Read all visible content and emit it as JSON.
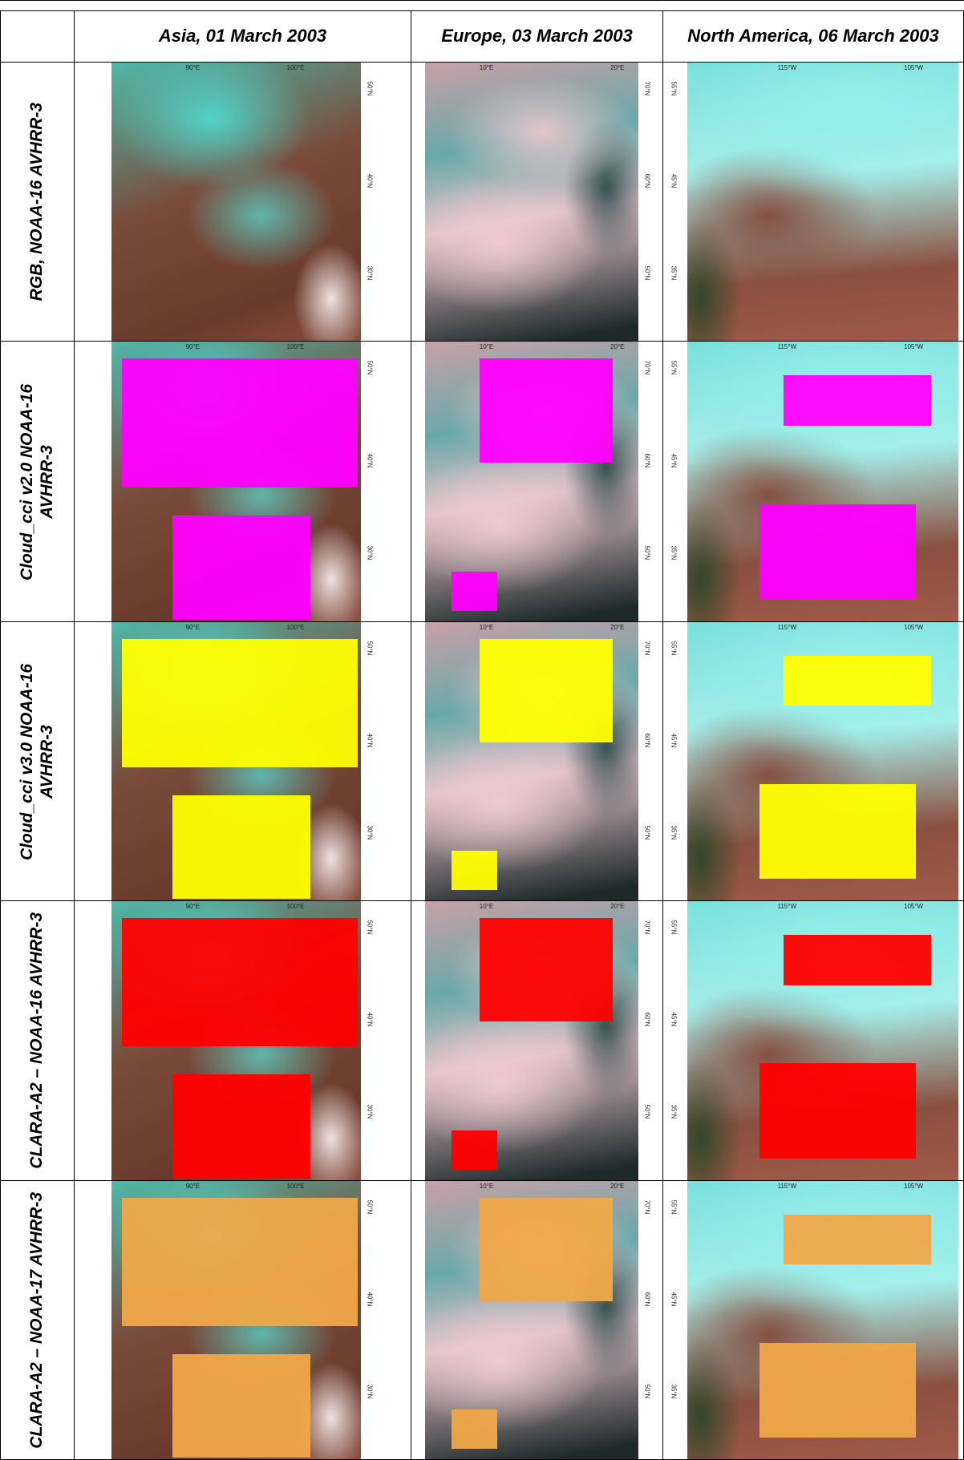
{
  "table": {
    "columns": [
      {
        "title": "Asia, 01 March 2003",
        "lon_labels": [
          "90°E",
          "100°E"
        ],
        "lat_labels": [
          "50°N",
          "40°N",
          "30°N"
        ]
      },
      {
        "title": "Europe, 03 March 2003",
        "lon_labels": [
          "10°E",
          "20°E"
        ],
        "lat_labels": [
          "70°N",
          "60°N",
          "50°N"
        ]
      },
      {
        "title": "North America, 06 March 2003",
        "lon_labels": [
          "115°W",
          "105°W"
        ],
        "lat_labels": [
          "55°N",
          "45°N",
          "35°N"
        ]
      }
    ],
    "rows": [
      "RGB, NOAA-16 AVHRR-3",
      "Cloud_cci v2.0 NOAA-16 AVHRR-3",
      "Cloud_cci v3.0 NOAA-16 AVHRR-3",
      "CLARA-A2 – NOAA-16 AVHRR-3",
      "CLARA-A2 – NOAA-17 AVHRR-3"
    ]
  }
}
